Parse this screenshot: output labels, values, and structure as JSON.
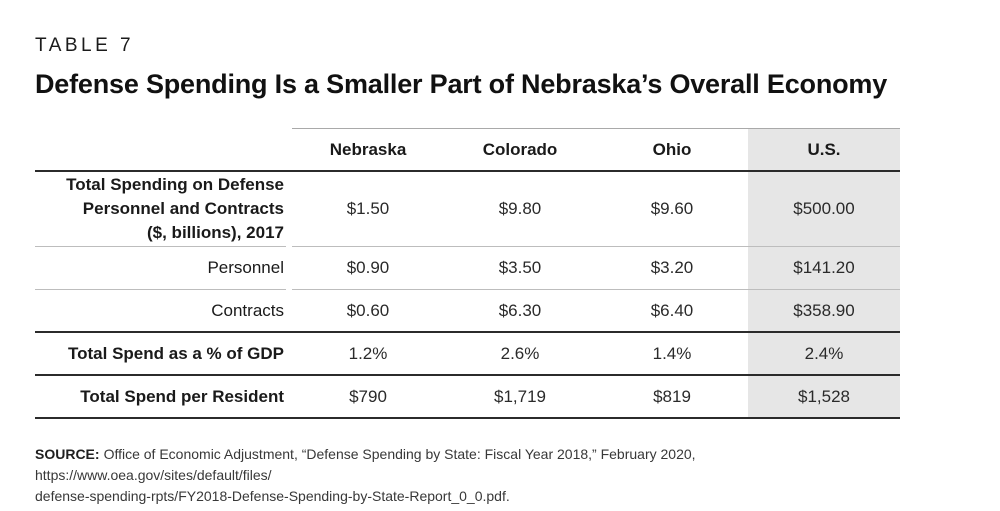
{
  "kicker": "TABLE 7",
  "title": "Defense Spending Is a Smaller Part of Nebraska’s Overall Economy",
  "chart_data": {
    "type": "table",
    "title": "Defense Spending Is a Smaller Part of Nebraska’s Overall Economy",
    "columns": [
      "Nebraska",
      "Colorado",
      "Ohio",
      "U.S."
    ],
    "highlighted_column": "U.S.",
    "rows": [
      {
        "label": "Total Spending on Defense Personnel and Contracts ($, billions), 2017",
        "label_lines": [
          "Total Spending on Defense",
          "Personnel and Contracts",
          "($, billions), 2017"
        ],
        "emphasis": true,
        "values": [
          "$1.50",
          "$9.80",
          "$9.60",
          "$500.00"
        ]
      },
      {
        "label": "Personnel",
        "emphasis": false,
        "values": [
          "$0.90",
          "$3.50",
          "$3.20",
          "$141.20"
        ]
      },
      {
        "label": "Contracts",
        "emphasis": false,
        "values": [
          "$0.60",
          "$6.30",
          "$6.40",
          "$358.90"
        ]
      },
      {
        "label": "Total Spend as a % of GDP",
        "emphasis": true,
        "values": [
          "1.2%",
          "2.6%",
          "1.4%",
          "2.4%"
        ]
      },
      {
        "label": "Total Spend per Resident",
        "emphasis": true,
        "values": [
          "$790",
          "$1,719",
          "$819",
          "$1,528"
        ]
      }
    ]
  },
  "colors": {
    "highlight_bg": "#e6e6e6",
    "heavy_rule": "#2b2b2b",
    "light_rule": "#bdbdbd"
  },
  "source": {
    "label": "SOURCE:",
    "line1": "Office of Economic Adjustment, “Defense Spending by State: Fiscal Year 2018,” February 2020, https://www.oea.gov/sites/default/files/",
    "line2": "defense-spending-rpts/FY2018-Defense-Spending-by-State-Report_0_0.pdf."
  }
}
